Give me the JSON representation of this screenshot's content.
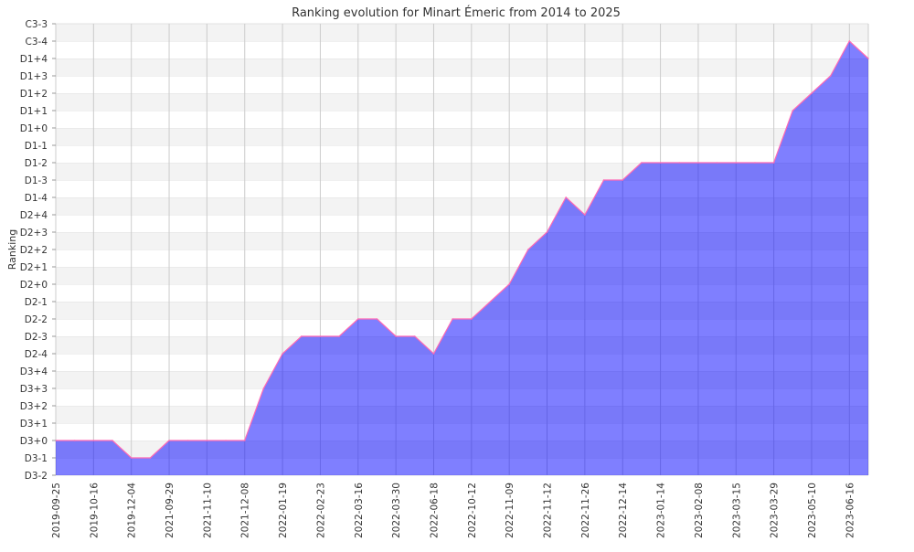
{
  "chart_data": {
    "type": "area",
    "title": "Ranking evolution for Minart Émeric from 2014 to 2025",
    "xlabel": "",
    "ylabel": "Ranking",
    "grid": true,
    "y_levels": [
      "D3-2",
      "D3-1",
      "D3+0",
      "D3+1",
      "D3+2",
      "D3+3",
      "D3+4",
      "D2-4",
      "D2-3",
      "D2-2",
      "D2-1",
      "D2+0",
      "D2+1",
      "D2+2",
      "D2+3",
      "D2+4",
      "D1-4",
      "D1-3",
      "D1-2",
      "D1-1",
      "D1+0",
      "D1+1",
      "D1+2",
      "D1+3",
      "D1+4",
      "C3-4",
      "C3-3"
    ],
    "x_tick_labels": [
      "2019-09-25",
      "2019-10-16",
      "2019-12-04",
      "2021-09-29",
      "2021-11-10",
      "2021-12-08",
      "2022-01-19",
      "2022-02-23",
      "2022-03-16",
      "2022-03-30",
      "2022-06-18",
      "2022-10-12",
      "2022-11-09",
      "2022-11-12",
      "2022-11-26",
      "2022-12-14",
      "2023-01-14",
      "2023-02-08",
      "2023-03-15",
      "2023-03-29",
      "2023-05-10",
      "2023-06-16"
    ],
    "tick_every": 2,
    "values": [
      "D3+0",
      "D3+0",
      "D3+0",
      "D3+0",
      "D3-1",
      "D3-1",
      "D3+0",
      "D3+0",
      "D3+0",
      "D3+0",
      "D3+0",
      "D3+3",
      "D2-4",
      "D2-3",
      "D2-3",
      "D2-3",
      "D2-2",
      "D2-2",
      "D2-3",
      "D2-3",
      "D2-4",
      "D2-2",
      "D2-2",
      "D2-1",
      "D2+0",
      "D2+2",
      "D2+3",
      "D1-4",
      "D2+4",
      "D1-3",
      "D1-3",
      "D1-2",
      "D1-2",
      "D1-2",
      "D1-2",
      "D1-2",
      "D1-2",
      "D1-2",
      "D1-2",
      "D1+1",
      "D1+2",
      "D1+3",
      "C3-4",
      "D1+4"
    ],
    "colors": {
      "fill": "#0000ff",
      "line": "#ff69b4",
      "band": "#f3f3f3",
      "grid": "#cccccc"
    }
  }
}
